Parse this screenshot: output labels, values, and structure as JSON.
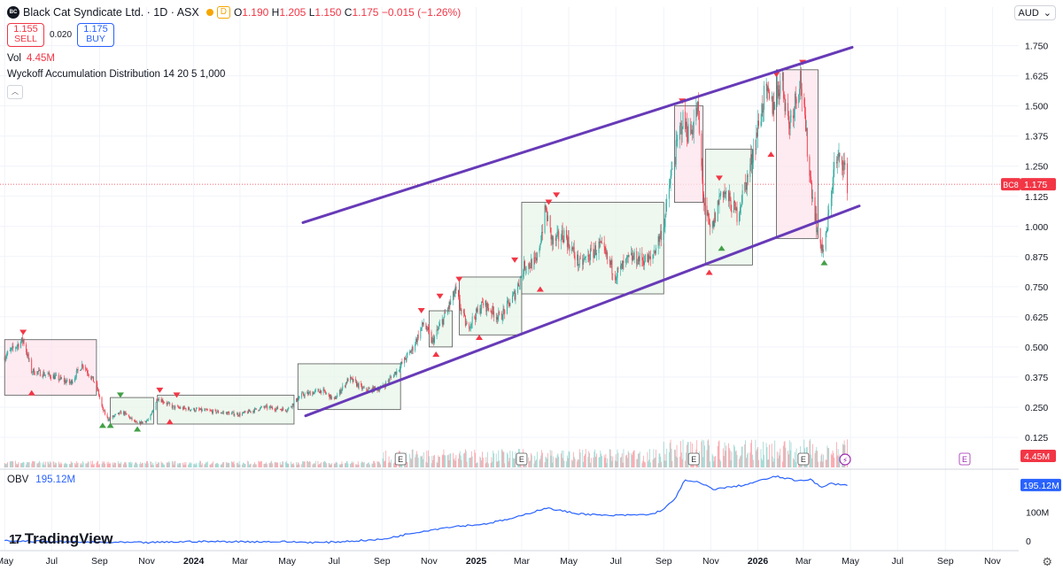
{
  "header": {
    "title": "Black Cat Syndicate Ltd. · 1D · ASX",
    "logo_text": "BC",
    "interval_badge": "D",
    "ohlc": {
      "open_label": "O",
      "open": "1.190",
      "high_label": "H",
      "high": "1.205",
      "low_label": "L",
      "low": "1.150",
      "close_label": "C",
      "close": "1.175",
      "change": "−0.015 (−1.26%)"
    },
    "sell_price": "1.155",
    "sell_label": "SELL",
    "spread": "0.020",
    "buy_price": "1.175",
    "buy_label": "BUY",
    "currency": "AUD",
    "collapse_icon": "chevron-up-icon"
  },
  "indicators": {
    "volume_label": "Vol",
    "volume_value": "4.45M",
    "wyckoff_label": "Wyckoff Accumulation Distribution 14 20 5 1,000",
    "obv_label": "OBV",
    "obv_value": "195.12M"
  },
  "branding": {
    "name": "TradingView"
  },
  "colors": {
    "up": "#26a69a",
    "down": "#f23645",
    "channel": "#673ab7",
    "obv": "#2962ff",
    "accum": "#e8f5e9",
    "dist": "#fce4ec"
  },
  "chart_data": {
    "type": "candlestick",
    "symbol": "BC8",
    "y_ticks": [
      "0.125",
      "0.250",
      "0.375",
      "0.500",
      "0.625",
      "0.750",
      "0.875",
      "1.000",
      "1.125",
      "1.250",
      "1.375",
      "1.500",
      "1.625",
      "1.750"
    ],
    "y_range": [
      0.0,
      1.8
    ],
    "x_ticks": [
      "May",
      "Jul",
      "Sep",
      "Nov",
      "2024",
      "Mar",
      "May",
      "Jul",
      "Sep",
      "Nov",
      "2025",
      "Mar",
      "May",
      "Jul",
      "Sep",
      "Nov",
      "2026",
      "Mar",
      "May",
      "Jul",
      "Sep",
      "Nov"
    ],
    "x_tick_dates": [
      "2023-05-01",
      "2023-07-01",
      "2023-09-01",
      "2023-11-01",
      "2024-01-01",
      "2024-03-01",
      "2024-05-01",
      "2024-07-01",
      "2024-09-01",
      "2024-11-01",
      "2025-01-01",
      "2025-03-01",
      "2025-05-01",
      "2025-07-01",
      "2025-09-01",
      "2025-11-01",
      "2026-01-01",
      "2026-03-01",
      "2026-05-01",
      "2026-07-01",
      "2026-09-01",
      "2026-11-01"
    ],
    "last_price": "1.175",
    "price_path": [
      [
        "2023-05-01",
        0.46
      ],
      [
        "2023-05-25",
        0.53
      ],
      [
        "2023-06-05",
        0.4
      ],
      [
        "2023-07-01",
        0.38
      ],
      [
        "2023-07-25",
        0.35
      ],
      [
        "2023-08-10",
        0.43
      ],
      [
        "2023-08-28",
        0.34
      ],
      [
        "2023-09-05",
        0.24
      ],
      [
        "2023-09-12",
        0.2
      ],
      [
        "2023-10-01",
        0.23
      ],
      [
        "2023-10-20",
        0.18
      ],
      [
        "2023-11-05",
        0.2
      ],
      [
        "2023-11-15",
        0.29
      ],
      [
        "2023-12-05",
        0.25
      ],
      [
        "2024-01-01",
        0.24
      ],
      [
        "2024-02-01",
        0.23
      ],
      [
        "2024-03-01",
        0.22
      ],
      [
        "2024-04-01",
        0.25
      ],
      [
        "2024-05-01",
        0.24
      ],
      [
        "2024-05-20",
        0.3
      ],
      [
        "2024-06-15",
        0.32
      ],
      [
        "2024-07-01",
        0.28
      ],
      [
        "2024-07-20",
        0.37
      ],
      [
        "2024-08-10",
        0.32
      ],
      [
        "2024-09-01",
        0.33
      ],
      [
        "2024-09-20",
        0.4
      ],
      [
        "2024-10-10",
        0.49
      ],
      [
        "2024-10-25",
        0.6
      ],
      [
        "2024-11-05",
        0.52
      ],
      [
        "2024-11-20",
        0.62
      ],
      [
        "2024-12-05",
        0.73
      ],
      [
        "2024-12-20",
        0.58
      ],
      [
        "2025-01-10",
        0.68
      ],
      [
        "2025-02-01",
        0.62
      ],
      [
        "2025-02-20",
        0.72
      ],
      [
        "2025-03-05",
        0.84
      ],
      [
        "2025-03-20",
        0.85
      ],
      [
        "2025-04-01",
        1.07
      ],
      [
        "2025-04-10",
        0.93
      ],
      [
        "2025-04-25",
        0.97
      ],
      [
        "2025-05-15",
        0.84
      ],
      [
        "2025-06-10",
        0.92
      ],
      [
        "2025-07-01",
        0.8
      ],
      [
        "2025-07-20",
        0.87
      ],
      [
        "2025-08-15",
        0.86
      ],
      [
        "2025-09-01",
        1.0
      ],
      [
        "2025-09-10",
        1.2
      ],
      [
        "2025-09-25",
        1.44
      ],
      [
        "2025-10-05",
        1.38
      ],
      [
        "2025-10-15",
        1.49
      ],
      [
        "2025-10-22",
        1.13
      ],
      [
        "2025-11-01",
        0.96
      ],
      [
        "2025-11-15",
        1.16
      ],
      [
        "2025-12-05",
        1.05
      ],
      [
        "2025-12-20",
        1.22
      ],
      [
        "2026-01-10",
        1.55
      ],
      [
        "2026-01-20",
        1.5
      ],
      [
        "2026-02-01",
        1.62
      ],
      [
        "2026-02-10",
        1.42
      ],
      [
        "2026-02-25",
        1.62
      ],
      [
        "2026-03-10",
        1.2
      ],
      [
        "2026-03-20",
        0.96
      ],
      [
        "2026-03-28",
        0.89
      ],
      [
        "2026-04-10",
        1.25
      ],
      [
        "2026-04-20",
        1.29
      ],
      [
        "2026-04-27",
        1.175
      ]
    ],
    "channel": {
      "upper": [
        [
          "2024-05-01",
          0.995
        ],
        [
          "2026-04-30",
          1.74
        ]
      ],
      "lower": [
        [
          "2024-05-01",
          0.185
        ],
        [
          "2026-04-30",
          1.07
        ]
      ]
    },
    "wyckoff_boxes": [
      {
        "kind": "dist",
        "from": "2023-05-01",
        "to": "2023-08-28",
        "low": 0.3,
        "high": 0.53
      },
      {
        "kind": "accum",
        "from": "2023-09-15",
        "to": "2023-11-10",
        "low": 0.18,
        "high": 0.29
      },
      {
        "kind": "accum",
        "from": "2023-11-15",
        "to": "2024-05-10",
        "low": 0.18,
        "high": 0.3
      },
      {
        "kind": "accum",
        "from": "2024-05-15",
        "to": "2024-09-25",
        "low": 0.24,
        "high": 0.43
      },
      {
        "kind": "accum",
        "from": "2024-11-01",
        "to": "2024-12-01",
        "low": 0.5,
        "high": 0.65
      },
      {
        "kind": "accum",
        "from": "2024-12-10",
        "to": "2025-03-01",
        "low": 0.55,
        "high": 0.79
      },
      {
        "kind": "accum",
        "from": "2025-03-01",
        "to": "2025-09-01",
        "low": 0.72,
        "high": 1.1
      },
      {
        "kind": "dist",
        "from": "2025-09-15",
        "to": "2025-10-22",
        "low": 1.1,
        "high": 1.5
      },
      {
        "kind": "accum",
        "from": "2025-10-25",
        "to": "2025-12-25",
        "low": 0.84,
        "high": 1.32
      },
      {
        "kind": "dist",
        "from": "2026-01-25",
        "to": "2026-03-20",
        "low": 0.95,
        "high": 1.65
      }
    ],
    "markers": [
      {
        "date": "2023-05-25",
        "price": 0.56,
        "dir": "down",
        "color": "red"
      },
      {
        "date": "2023-06-05",
        "price": 0.31,
        "dir": "up",
        "color": "red"
      },
      {
        "date": "2023-09-05",
        "price": 0.175,
        "dir": "up",
        "color": "green"
      },
      {
        "date": "2023-09-15",
        "price": 0.175,
        "dir": "up",
        "color": "green"
      },
      {
        "date": "2023-09-28",
        "price": 0.3,
        "dir": "down",
        "color": "green"
      },
      {
        "date": "2023-10-20",
        "price": 0.16,
        "dir": "up",
        "color": "green"
      },
      {
        "date": "2023-11-18",
        "price": 0.32,
        "dir": "down",
        "color": "red"
      },
      {
        "date": "2023-12-01",
        "price": 0.19,
        "dir": "up",
        "color": "red"
      },
      {
        "date": "2023-12-10",
        "price": 0.3,
        "dir": "down",
        "color": "red"
      },
      {
        "date": "2024-10-22",
        "price": 0.65,
        "dir": "down",
        "color": "red"
      },
      {
        "date": "2024-11-15",
        "price": 0.71,
        "dir": "down",
        "color": "red"
      },
      {
        "date": "2024-11-10",
        "price": 0.47,
        "dir": "up",
        "color": "red"
      },
      {
        "date": "2024-12-10",
        "price": 0.78,
        "dir": "down",
        "color": "red"
      },
      {
        "date": "2025-01-05",
        "price": 0.54,
        "dir": "up",
        "color": "red"
      },
      {
        "date": "2025-02-20",
        "price": 0.86,
        "dir": "down",
        "color": "red"
      },
      {
        "date": "2025-04-05",
        "price": 1.1,
        "dir": "down",
        "color": "red"
      },
      {
        "date": "2025-04-15",
        "price": 1.13,
        "dir": "down",
        "color": "red"
      },
      {
        "date": "2025-03-25",
        "price": 0.74,
        "dir": "up",
        "color": "red"
      },
      {
        "date": "2025-09-25",
        "price": 1.52,
        "dir": "down",
        "color": "red"
      },
      {
        "date": "2025-10-30",
        "price": 0.81,
        "dir": "up",
        "color": "red"
      },
      {
        "date": "2025-11-12",
        "price": 1.2,
        "dir": "down",
        "color": "red"
      },
      {
        "date": "2025-11-15",
        "price": 0.91,
        "dir": "up",
        "color": "green"
      },
      {
        "date": "2026-01-18",
        "price": 1.3,
        "dir": "up",
        "color": "red"
      },
      {
        "date": "2026-01-25",
        "price": 1.63,
        "dir": "down",
        "color": "red"
      },
      {
        "date": "2026-02-28",
        "price": 1.68,
        "dir": "down",
        "color": "red"
      },
      {
        "date": "2026-03-28",
        "price": 0.85,
        "dir": "up",
        "color": "green"
      }
    ],
    "volume": {
      "last": "4.45M",
      "spikes": [
        [
          "2025-09-28",
          0.8
        ],
        [
          "2026-03-15",
          0.5
        ],
        [
          "2025-10-05",
          0.35
        ],
        [
          "2025-12-20",
          0.2
        ],
        [
          "2026-02-05",
          0.25
        ],
        [
          "2026-03-01",
          0.2
        ]
      ],
      "earnings_markers": [
        "2024-09-25",
        "2025-03-01",
        "2025-10-10",
        "2026-03-01"
      ],
      "earnings_label": "E"
    },
    "obv": {
      "y_ticks": [
        "0",
        "100M"
      ],
      "last": "195.12M",
      "path": [
        [
          "2023-05-01",
          0
        ],
        [
          "2023-09-01",
          -5
        ],
        [
          "2023-11-01",
          -6
        ],
        [
          "2024-01-01",
          -2
        ],
        [
          "2024-05-01",
          -3
        ],
        [
          "2024-06-15",
          -6
        ],
        [
          "2024-09-01",
          5
        ],
        [
          "2024-10-15",
          30
        ],
        [
          "2024-12-01",
          50
        ],
        [
          "2025-01-10",
          58
        ],
        [
          "2025-02-20",
          80
        ],
        [
          "2025-04-01",
          115
        ],
        [
          "2025-05-10",
          96
        ],
        [
          "2025-06-20",
          88
        ],
        [
          "2025-08-15",
          92
        ],
        [
          "2025-09-01",
          110
        ],
        [
          "2025-09-15",
          145
        ],
        [
          "2025-09-28",
          210
        ],
        [
          "2025-10-15",
          205
        ],
        [
          "2025-11-05",
          180
        ],
        [
          "2025-12-15",
          195
        ],
        [
          "2026-01-10",
          215
        ],
        [
          "2026-01-25",
          225
        ],
        [
          "2026-02-20",
          210
        ],
        [
          "2026-03-10",
          215
        ],
        [
          "2026-03-25",
          185
        ],
        [
          "2026-04-05",
          200
        ],
        [
          "2026-04-27",
          195
        ]
      ]
    }
  }
}
